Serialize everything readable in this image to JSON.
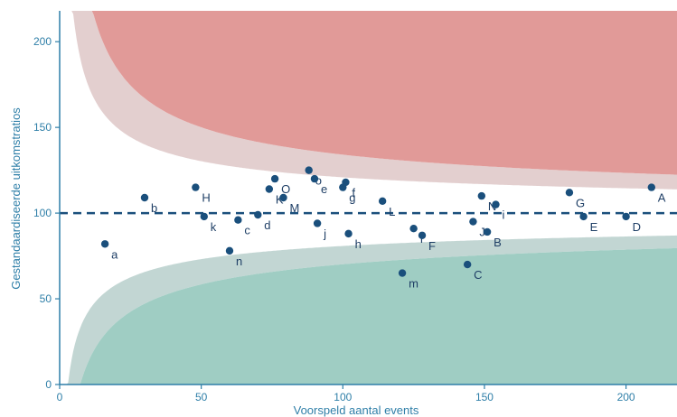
{
  "chart_data": {
    "type": "scatter",
    "title": "",
    "xlabel": "Voorspeld aantal events",
    "ylabel": "Gestandaardiseerde uitkomstratios",
    "xlim": [
      0,
      218
    ],
    "ylim": [
      0,
      218
    ],
    "xticks": [
      "0",
      "50",
      "100",
      "150",
      "200"
    ],
    "yticks": [
      "0",
      "50",
      "100",
      "150",
      "200"
    ],
    "reference_line": 100,
    "grid": false,
    "legend": "none",
    "colors": {
      "axis": "#2f7fa8",
      "points": "#1a4f7c",
      "labels": "#1f3f66",
      "reference": "#1a4f7c",
      "upper_inner_band": "#e3cfcf",
      "upper_outer_band": "#e19a98",
      "lower_inner_band": "#c2d6d3",
      "lower_outer_band": "#9fcdc3"
    },
    "points": [
      {
        "label": "a",
        "x": 16,
        "y": 82
      },
      {
        "label": "b",
        "x": 30,
        "y": 109
      },
      {
        "label": "H",
        "x": 48,
        "y": 115
      },
      {
        "label": "k",
        "x": 51,
        "y": 98
      },
      {
        "label": "n",
        "x": 60,
        "y": 78
      },
      {
        "label": "c",
        "x": 63,
        "y": 96
      },
      {
        "label": "d",
        "x": 70,
        "y": 99
      },
      {
        "label": "K",
        "x": 74,
        "y": 114
      },
      {
        "label": "O",
        "x": 76,
        "y": 120
      },
      {
        "label": "M",
        "x": 79,
        "y": 109
      },
      {
        "label": "o",
        "x": 88,
        "y": 125
      },
      {
        "label": "e",
        "x": 90,
        "y": 120
      },
      {
        "label": "j",
        "x": 91,
        "y": 94
      },
      {
        "label": "g",
        "x": 100,
        "y": 115
      },
      {
        "label": "f",
        "x": 101,
        "y": 118
      },
      {
        "label": "h",
        "x": 102,
        "y": 88
      },
      {
        "label": "L",
        "x": 114,
        "y": 107
      },
      {
        "label": "m",
        "x": 121,
        "y": 65
      },
      {
        "label": "I",
        "x": 125,
        "y": 91
      },
      {
        "label": "F",
        "x": 128,
        "y": 87
      },
      {
        "label": "C",
        "x": 144,
        "y": 70
      },
      {
        "label": "J",
        "x": 146,
        "y": 95
      },
      {
        "label": "N",
        "x": 149,
        "y": 110
      },
      {
        "label": "B",
        "x": 151,
        "y": 89
      },
      {
        "label": "i",
        "x": 154,
        "y": 105
      },
      {
        "label": "G",
        "x": 180,
        "y": 112
      },
      {
        "label": "E",
        "x": 185,
        "y": 98
      },
      {
        "label": "D",
        "x": 200,
        "y": 98
      },
      {
        "label": "A",
        "x": 209,
        "y": 115
      }
    ]
  }
}
